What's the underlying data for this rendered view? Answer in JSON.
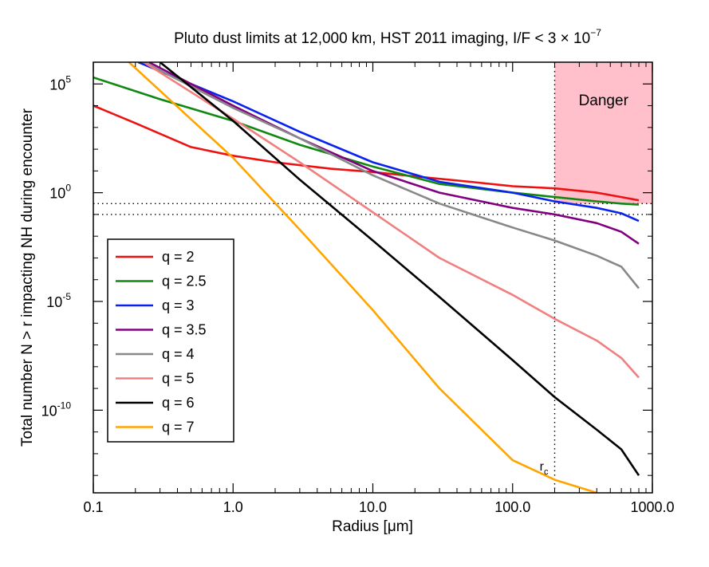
{
  "chart_data": {
    "type": "line",
    "title_main": "Pluto dust limits at 12,000 km, HST 2011 imaging, I/F < 3 × 10",
    "title_exp": "−7",
    "xlabel_main": "Radius [",
    "xlabel_mu": "μ",
    "xlabel_end": "m]",
    "ylabel": "Total number N > r impacting NH during encounter",
    "x_scale": "log",
    "y_scale": "log",
    "xlim": [
      0.1,
      1000
    ],
    "ylim_log10": [
      -13.8,
      6.0
    ],
    "x_ticks": [
      {
        "value": 0.1,
        "label": "0.1"
      },
      {
        "value": 1,
        "label": "1.0"
      },
      {
        "value": 10,
        "label": "10.0"
      },
      {
        "value": 100,
        "label": "100.0"
      },
      {
        "value": 1000,
        "label": "1000.0"
      }
    ],
    "y_ticks": [
      {
        "exp": 5,
        "base": "10",
        "sup": "5"
      },
      {
        "exp": 0,
        "base": "10",
        "sup": "0"
      },
      {
        "exp": -5,
        "base": "10",
        "sup": "-5"
      },
      {
        "exp": -10,
        "base": "10",
        "sup": "-10"
      }
    ],
    "danger_region": {
      "label": "Danger",
      "x_min": 200,
      "x_max": 1000,
      "y_min_log10": -0.5,
      "color": "#ffc0cb"
    },
    "h_reference_lines_log10": [
      -0.5,
      -1.0
    ],
    "rc_line": {
      "x": 200,
      "label": "r",
      "sub": "c"
    },
    "cutoff_radius": 800,
    "series": [
      {
        "name": "q = 2",
        "legend": "q = 2",
        "color": "#ee1111",
        "points": [
          [
            0.1,
            4.0
          ],
          [
            0.2,
            3.2
          ],
          [
            0.5,
            2.1
          ],
          [
            1,
            1.7
          ],
          [
            2,
            1.4
          ],
          [
            5,
            1.1
          ],
          [
            10,
            0.95
          ],
          [
            20,
            0.75
          ],
          [
            50,
            0.5
          ],
          [
            100,
            0.3
          ],
          [
            200,
            0.2
          ],
          [
            400,
            0.0
          ],
          [
            600,
            -0.2
          ],
          [
            800,
            -0.35
          ]
        ]
      },
      {
        "name": "q = 2.5",
        "legend": "q = 2.5",
        "color": "#118811",
        "points": [
          [
            0.1,
            5.3
          ],
          [
            0.3,
            4.3
          ],
          [
            1,
            3.3
          ],
          [
            3,
            2.2
          ],
          [
            10,
            1.2
          ],
          [
            30,
            0.4
          ],
          [
            100,
            0.0
          ],
          [
            200,
            -0.2
          ],
          [
            400,
            -0.4
          ],
          [
            600,
            -0.5
          ],
          [
            800,
            -0.55
          ]
        ]
      },
      {
        "name": "q = 3",
        "legend": "q = 3",
        "color": "#0a22ee",
        "points": [
          [
            0.21,
            6.0
          ],
          [
            0.5,
            5.0
          ],
          [
            1,
            4.2
          ],
          [
            3,
            2.8
          ],
          [
            10,
            1.4
          ],
          [
            30,
            0.5
          ],
          [
            100,
            0.0
          ],
          [
            200,
            -0.4
          ],
          [
            400,
            -0.7
          ],
          [
            600,
            -0.95
          ],
          [
            800,
            -1.3
          ]
        ]
      },
      {
        "name": "q = 3.5",
        "legend": "q = 3.5",
        "color": "#800080",
        "points": [
          [
            0.25,
            6.0
          ],
          [
            1,
            4.0
          ],
          [
            3,
            2.5
          ],
          [
            10,
            1.0
          ],
          [
            30,
            0.0
          ],
          [
            100,
            -0.7
          ],
          [
            200,
            -1.0
          ],
          [
            400,
            -1.4
          ],
          [
            600,
            -1.8
          ],
          [
            800,
            -2.35
          ]
        ]
      },
      {
        "name": "q = 4",
        "legend": "q = 4",
        "color": "#888888",
        "points": [
          [
            0.23,
            6.0
          ],
          [
            1,
            3.9
          ],
          [
            3,
            2.5
          ],
          [
            10,
            0.8
          ],
          [
            30,
            -0.5
          ],
          [
            100,
            -1.6
          ],
          [
            200,
            -2.2
          ],
          [
            400,
            -2.9
          ],
          [
            600,
            -3.4
          ],
          [
            800,
            -4.4
          ]
        ]
      },
      {
        "name": "q = 5",
        "legend": "q = 5",
        "color": "#f08080",
        "points": [
          [
            0.23,
            6.0
          ],
          [
            1,
            3.4
          ],
          [
            3,
            1.4
          ],
          [
            10,
            -0.9
          ],
          [
            30,
            -3.0
          ],
          [
            100,
            -4.7
          ],
          [
            200,
            -5.8
          ],
          [
            400,
            -6.8
          ],
          [
            600,
            -7.6
          ],
          [
            800,
            -8.5
          ]
        ]
      },
      {
        "name": "q = 6",
        "legend": "q = 6",
        "color": "#000000",
        "points": [
          [
            0.3,
            6.0
          ],
          [
            1,
            3.3
          ],
          [
            3,
            0.6
          ],
          [
            10,
            -2.2
          ],
          [
            30,
            -4.8
          ],
          [
            100,
            -7.7
          ],
          [
            200,
            -9.4
          ],
          [
            400,
            -10.9
          ],
          [
            600,
            -11.8
          ],
          [
            800,
            -13.0
          ]
        ]
      },
      {
        "name": "q = 7",
        "legend": "q = 7",
        "color": "#ffa500",
        "points": [
          [
            0.18,
            6.0
          ],
          [
            1,
            1.6
          ],
          [
            3,
            -1.7
          ],
          [
            10,
            -5.4
          ],
          [
            30,
            -9.0
          ],
          [
            100,
            -12.3
          ],
          [
            200,
            -13.2
          ],
          [
            400,
            -13.8
          ]
        ]
      }
    ]
  }
}
